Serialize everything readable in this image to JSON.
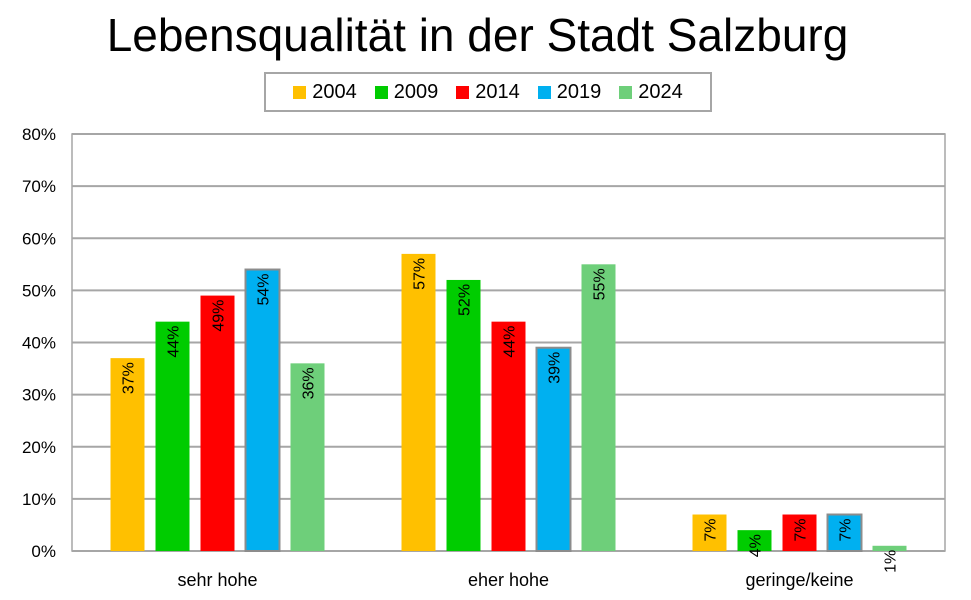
{
  "chart_data": {
    "type": "bar",
    "title": "Lebensqualität in der Stadt Salzburg",
    "categories": [
      "sehr hohe",
      "eher hohe",
      "geringe/keine"
    ],
    "series": [
      {
        "name": "2004",
        "color": "#ffc000",
        "values": [
          37,
          57,
          7
        ],
        "labels": [
          "37%",
          "57%",
          "7%"
        ]
      },
      {
        "name": "2009",
        "color": "#00cc00",
        "values": [
          44,
          52,
          4
        ],
        "labels": [
          "44%",
          "52%",
          "4%"
        ]
      },
      {
        "name": "2014",
        "color": "#ff0000",
        "values": [
          49,
          44,
          7
        ],
        "labels": [
          "49%",
          "44%",
          "7%"
        ]
      },
      {
        "name": "2019",
        "color": "#00b0f0",
        "values": [
          54,
          39,
          7
        ],
        "labels": [
          "54%",
          "39%",
          "7%"
        ]
      },
      {
        "name": "2024",
        "color": "#6ecf7a",
        "values": [
          36,
          55,
          1
        ],
        "labels": [
          "36%",
          "55%",
          "1%"
        ]
      }
    ],
    "yticks": [
      "0%",
      "10%",
      "20%",
      "30%",
      "40%",
      "50%",
      "60%",
      "70%",
      "80%"
    ],
    "ylim": [
      0,
      80
    ],
    "grid": true,
    "legend_position": "top-center"
  }
}
